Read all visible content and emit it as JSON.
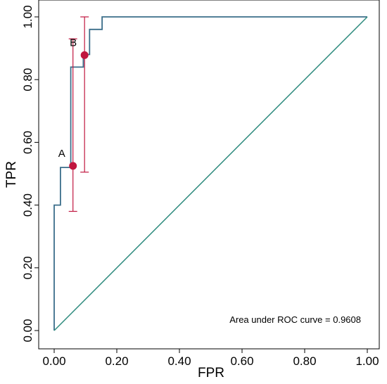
{
  "chart_data": {
    "type": "line",
    "xlabel": "FPR",
    "ylabel": "TPR",
    "xlim": [
      0,
      1
    ],
    "ylim": [
      0,
      1
    ],
    "x_ticks": [
      0,
      0.2,
      0.4,
      0.6,
      0.8,
      1.0
    ],
    "x_tick_labels": [
      "0.00",
      "0.20",
      "0.40",
      "0.60",
      "0.80",
      "1.00"
    ],
    "y_ticks": [
      0,
      0.2,
      0.4,
      0.6,
      0.8,
      1.0
    ],
    "y_tick_labels": [
      "0.00",
      "0.20",
      "0.40",
      "0.60",
      "0.80",
      "1.00"
    ],
    "grid": false,
    "annotation": "Area under ROC curve = 0.9608",
    "series": [
      {
        "kind": "step",
        "color": "#3b6e8a",
        "points": [
          [
            0,
            0
          ],
          [
            0,
            0.4
          ],
          [
            0.02,
            0.4
          ],
          [
            0.02,
            0.52
          ],
          [
            0.053,
            0.52
          ],
          [
            0.053,
            0.84
          ],
          [
            0.093,
            0.84
          ],
          [
            0.093,
            0.88
          ],
          [
            0.113,
            0.88
          ],
          [
            0.113,
            0.96
          ],
          [
            0.153,
            0.96
          ],
          [
            0.153,
            1.0
          ],
          [
            1.0,
            1.0
          ]
        ]
      },
      {
        "kind": "reference",
        "color": "#2e8b7e",
        "points": [
          [
            0,
            0
          ],
          [
            1,
            1
          ]
        ]
      }
    ],
    "points": [
      {
        "label": "A",
        "x": 0.06,
        "y": 0.525,
        "ci_low": 0.38,
        "ci_high": 0.93,
        "color": "#c0163f"
      },
      {
        "label": "B",
        "x": 0.097,
        "y": 0.878,
        "ci_low": 0.505,
        "ci_high": 1.0,
        "color": "#c0163f"
      }
    ]
  }
}
